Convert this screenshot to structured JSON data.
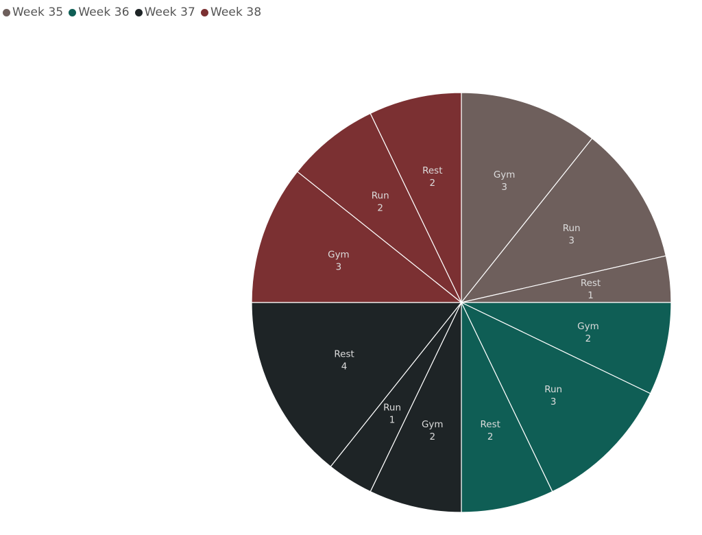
{
  "chart_data": {
    "type": "pie",
    "legend": {
      "position": "top-left",
      "entries": [
        {
          "name": "Week 35",
          "color": "#6e5f5c"
        },
        {
          "name": "Week 36",
          "color": "#0f5e55"
        },
        {
          "name": "Week 37",
          "color": "#1e2426"
        },
        {
          "name": "Week 38",
          "color": "#7b3032"
        }
      ]
    },
    "slices": [
      {
        "week": "Week 35",
        "activity": "Gym",
        "value": 3
      },
      {
        "week": "Week 35",
        "activity": "Run",
        "value": 3
      },
      {
        "week": "Week 35",
        "activity": "Rest",
        "value": 1
      },
      {
        "week": "Week 36",
        "activity": "Gym",
        "value": 2
      },
      {
        "week": "Week 36",
        "activity": "Run",
        "value": 3
      },
      {
        "week": "Week 36",
        "activity": "Rest",
        "value": 2
      },
      {
        "week": "Week 37",
        "activity": "Gym",
        "value": 2
      },
      {
        "week": "Week 37",
        "activity": "Run",
        "value": 1
      },
      {
        "week": "Week 37",
        "activity": "Rest",
        "value": 4
      },
      {
        "week": "Week 38",
        "activity": "Gym",
        "value": 3
      },
      {
        "week": "Week 38",
        "activity": "Run",
        "value": 2
      },
      {
        "week": "Week 38",
        "activity": "Rest",
        "value": 2
      }
    ]
  }
}
